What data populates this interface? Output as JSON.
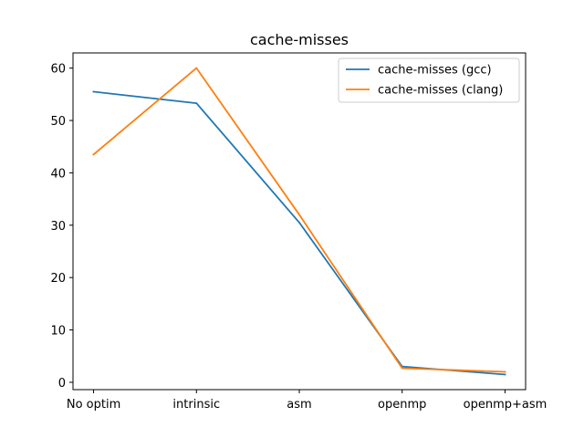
{
  "chart_data": {
    "type": "line",
    "title": "cache-misses",
    "xlabel": "",
    "ylabel": "",
    "categories": [
      "No optim",
      "intrinsic",
      "asm",
      "openmp",
      "openmp+asm"
    ],
    "series": [
      {
        "name": "cache-misses (gcc)",
        "color": "#1f77b4",
        "values": [
          55.5,
          53.3,
          30.5,
          3.0,
          1.5
        ]
      },
      {
        "name": "cache-misses (clang)",
        "color": "#ff7f0e",
        "values": [
          43.5,
          60.0,
          32.0,
          2.7,
          2.0
        ]
      }
    ],
    "ylim": [
      -1.4,
      62.9
    ],
    "yticks": [
      0,
      10,
      20,
      30,
      40,
      50,
      60
    ],
    "grid": false,
    "legend_position": "upper right"
  }
}
